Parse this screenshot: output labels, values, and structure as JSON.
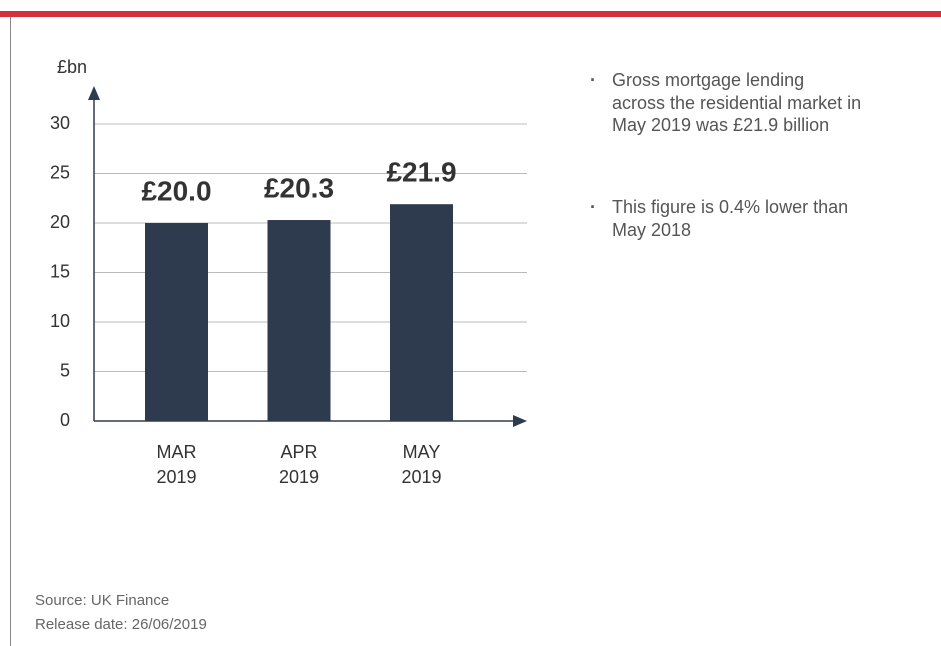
{
  "chart_data": {
    "type": "bar",
    "y_label": "£bn",
    "categories": [
      "MAR 2019",
      "APR 2019",
      "MAY 2019"
    ],
    "values": [
      20.0,
      20.3,
      21.9
    ],
    "value_labels": [
      "£20.0",
      "£20.3",
      "£21.9"
    ],
    "color": "#2e3b4e",
    "ylim": [
      0,
      30
    ],
    "yticks": [
      0,
      5,
      10,
      15,
      20,
      25,
      30
    ],
    "grid": true
  },
  "bullets": [
    "Gross mortgage lending across the residential market in May 2019 was £21.9 billion",
    "This figure is 0.4% lower than May 2018"
  ],
  "footer": {
    "source": "Source: UK Finance",
    "release": "Release date: 26/06/2019"
  }
}
